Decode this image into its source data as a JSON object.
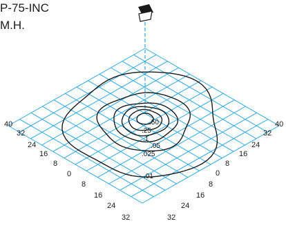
{
  "title": {
    "line1": "P-75-INC",
    "line2": "M.H."
  },
  "axes": {
    "left_ticks": [
      "40",
      "32",
      "24",
      "16",
      "8",
      "0"
    ],
    "bottom_left_ticks": [
      "8",
      "16",
      "24",
      "32"
    ],
    "right_ticks": [
      "40",
      "32",
      "24",
      "16",
      "8",
      "0"
    ],
    "bottom_right_ticks": [
      "8",
      "16",
      "24",
      "32"
    ]
  },
  "contours": [
    {
      "label": ".50",
      "level": 0.5
    },
    {
      "label": ".25",
      "level": 0.25
    },
    {
      "label": ".1",
      "level": 0.1
    },
    {
      "label": ".05",
      "level": 0.05
    },
    {
      "label": ".025",
      "level": 0.025
    },
    {
      "label": ".01",
      "level": 0.01
    }
  ],
  "colors": {
    "grid": "#2aa7df",
    "contour": "#1a1a1a",
    "text": "#1a1a1a"
  },
  "icons": {
    "fixture": "luminaire-icon"
  }
}
